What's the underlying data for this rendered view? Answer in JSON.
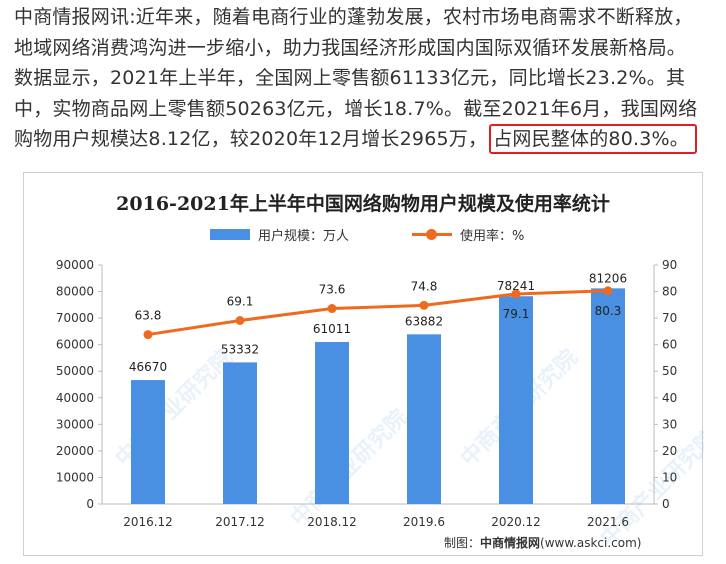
{
  "article": {
    "lines": [
      "中商情报网讯:近年来，随着电商行业的蓬勃发展，农村市场电商需求不断释放，",
      "地域网络消费鸿沟进一步缩小，助力我国经济形成国内国际双循环发展新格局。",
      "数据显示，2021年上半年，全国网上零售额61133亿元，同比增长23.2%。其",
      "中，实物商品网上零售额50263亿元，增长18.7%。截至2021年6月，我国网络"
    ],
    "line5_prefix": "购物用户规模达8.12亿，较2020年12月增长2965万，",
    "line5_highlight": "占网民整体的80.3%。"
  },
  "credit": {
    "prefix": "制图：",
    "brand": "中商情报网",
    "url": "(www.askci.com)"
  },
  "watermark": "中商产业研究院",
  "colors": {
    "bar": "#4a90e2",
    "line": "#ef6a1e",
    "highlight_border": "#e02020"
  },
  "chart_data": {
    "type": "bar",
    "title": "2016-2021年上半年中国网络购物用户规模及使用率统计",
    "categories": [
      "2016.12",
      "2017.12",
      "2018.12",
      "2019.6",
      "2020.12",
      "2021.6"
    ],
    "series": [
      {
        "name": "用户规模：万人",
        "type": "bar",
        "axis": "left",
        "values": [
          46670,
          53332,
          61011,
          63882,
          78241,
          81206
        ]
      },
      {
        "name": "使用率：%",
        "type": "line",
        "axis": "right",
        "values": [
          63.8,
          69.1,
          73.6,
          74.8,
          79.1,
          80.3
        ]
      }
    ],
    "data_labels_bar": [
      "46670",
      "53332",
      "61011",
      "63882",
      "78241",
      "81206"
    ],
    "data_labels_line": [
      "63.8",
      "69.1",
      "73.6",
      "74.8",
      "79.1",
      "80.3"
    ],
    "ylim_left": [
      0,
      90000
    ],
    "ylim_right": [
      0,
      90
    ],
    "yticks_left": [
      "0",
      "10000",
      "20000",
      "30000",
      "40000",
      "50000",
      "60000",
      "70000",
      "80000",
      "90000"
    ],
    "yticks_right": [
      "0",
      "10",
      "20",
      "30",
      "40",
      "50",
      "60",
      "70",
      "80",
      "90"
    ],
    "legend_position": "top",
    "grid": false
  }
}
